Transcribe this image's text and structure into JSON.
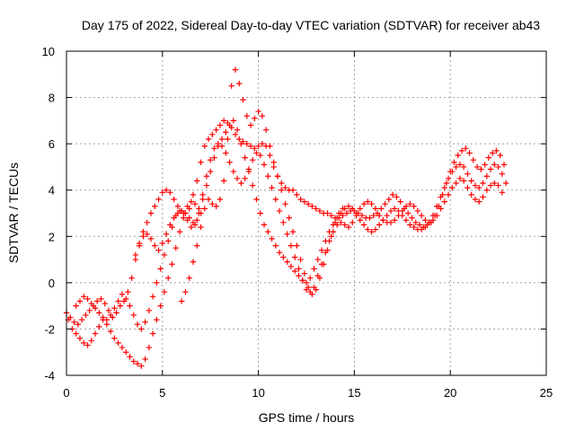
{
  "chart_data": {
    "type": "scatter",
    "title": "Day 175 of 2022, Sidereal Day-to-day VTEC variation (SDTVAR) for receiver ab43",
    "xlabel": "GPS time / hours",
    "ylabel": "SDTVAR / TECUs",
    "xlim": [
      0,
      25
    ],
    "ylim": [
      -4,
      10
    ],
    "xticks": [
      0,
      5,
      10,
      15,
      20,
      25
    ],
    "yticks": [
      -4,
      -2,
      0,
      2,
      4,
      6,
      8,
      10
    ],
    "grid": true,
    "marker": "plus",
    "color": "#ff0000",
    "series": [
      {
        "x": [
          0.0,
          0.2,
          0.4,
          0.6,
          0.8,
          1.0,
          1.2,
          1.4,
          1.6,
          1.8,
          2.0,
          2.2,
          2.4,
          2.6,
          2.8,
          3.0,
          3.2,
          3.4,
          3.6,
          3.8,
          4.0,
          4.2,
          4.4,
          4.6,
          4.8,
          5.0,
          5.2,
          5.4,
          5.6,
          5.8,
          6.0,
          6.2,
          6.4,
          6.6,
          6.8,
          7.0,
          7.2,
          7.4,
          7.6,
          7.8,
          8.0,
          8.2,
          8.4,
          8.6,
          8.8,
          9.0,
          9.2,
          9.4,
          9.6,
          9.8,
          10.0,
          10.2,
          10.4,
          10.6,
          10.8,
          11.0,
          11.2,
          11.4,
          11.6,
          11.8,
          12.0,
          12.2,
          12.4,
          12.6,
          12.8,
          13.0,
          13.2,
          13.4,
          13.6,
          13.8,
          14.0,
          14.2,
          14.4,
          14.6,
          14.8,
          15.0,
          15.2,
          15.4,
          15.6,
          15.8,
          16.0,
          16.2,
          16.4,
          16.6,
          16.8,
          17.0,
          17.2,
          17.4,
          17.6,
          17.8,
          18.0,
          18.2,
          18.4,
          18.6,
          18.8,
          19.0,
          19.2,
          19.4,
          19.6,
          19.8,
          20.0,
          20.2,
          20.4,
          20.6,
          20.8,
          21.0,
          21.2,
          21.4,
          21.6,
          21.8,
          22.0,
          22.2,
          22.4,
          22.6,
          22.8
        ],
        "y": [
          -1.3,
          -1.5,
          -1.7,
          -1.8,
          -1.6,
          -1.4,
          -1.2,
          -1.0,
          -0.8,
          -0.7,
          -0.9,
          -1.2,
          -1.5,
          -1.3,
          -1.0,
          -0.8,
          -0.4,
          0.2,
          1.0,
          1.7,
          2.2,
          2.6,
          3.0,
          3.3,
          3.6,
          3.9,
          4.0,
          3.9,
          3.6,
          3.3,
          3.1,
          3.0,
          3.2,
          3.8,
          4.4,
          5.2,
          5.9,
          6.2,
          6.4,
          6.6,
          6.8,
          7.0,
          6.9,
          6.7,
          6.4,
          6.2,
          6.1,
          6.0,
          5.9,
          5.8,
          5.9,
          6.0,
          5.9,
          5.5,
          5.0,
          4.6,
          4.3,
          4.1,
          4.0,
          4.0,
          3.8,
          3.6,
          3.5,
          3.4,
          3.3,
          3.2,
          3.1,
          3.0,
          3.0,
          2.9,
          2.8,
          2.8,
          2.9,
          3.0,
          3.1,
          3.1,
          3.0,
          2.9,
          2.8,
          2.8,
          2.9,
          3.0,
          3.2,
          3.4,
          3.6,
          3.8,
          3.7,
          3.5,
          3.2,
          3.0,
          2.8,
          2.6,
          2.5,
          2.4,
          2.5,
          2.6,
          2.9,
          3.3,
          3.8,
          4.3,
          4.8,
          5.2,
          5.5,
          5.7,
          5.8,
          5.6,
          5.3,
          5.0,
          4.9,
          5.1,
          5.4,
          5.6,
          5.7,
          5.5,
          5.1
        ]
      },
      {
        "x": [
          0.1,
          0.3,
          0.5,
          0.7,
          0.9,
          1.1,
          1.3,
          1.5,
          1.7,
          1.9,
          2.1,
          2.3,
          2.5,
          2.7,
          2.9,
          3.1,
          3.3,
          3.5,
          3.7,
          3.9,
          4.1,
          4.3,
          4.5,
          4.7,
          4.9,
          5.1,
          5.3,
          5.5,
          5.7,
          5.9,
          6.1,
          6.3,
          6.5,
          6.7,
          6.9,
          7.1,
          7.3,
          7.5,
          7.7,
          7.9,
          8.1,
          8.3,
          8.5,
          8.7,
          8.9,
          9.1,
          9.3,
          9.5,
          9.7,
          9.9,
          10.1,
          10.3,
          10.5,
          10.7,
          10.9,
          11.1,
          11.3,
          11.5,
          11.7,
          11.9,
          12.1,
          12.3,
          12.5,
          12.7,
          12.9,
          13.1,
          13.3,
          13.5,
          13.7,
          13.9,
          14.1,
          14.3,
          14.5,
          14.7,
          14.9,
          15.1,
          15.3,
          15.5,
          15.7,
          15.9,
          16.1,
          16.3,
          16.5,
          16.7,
          16.9,
          17.1,
          17.3,
          17.5,
          17.7,
          17.9,
          18.1,
          18.3,
          18.5,
          18.7,
          18.9,
          19.1,
          19.3,
          19.5,
          19.7,
          19.9,
          20.1,
          20.3,
          20.5,
          20.7,
          20.9,
          21.1,
          21.3,
          21.5,
          21.7,
          21.9,
          22.1,
          22.3,
          22.5,
          22.7,
          22.9
        ],
        "y": [
          -1.6,
          -2.0,
          -2.2,
          -2.4,
          -2.6,
          -2.7,
          -2.5,
          -2.2,
          -1.9,
          -1.6,
          -1.8,
          -2.1,
          -2.4,
          -2.6,
          -2.8,
          -3.0,
          -3.2,
          -3.4,
          -3.5,
          -3.6,
          -3.3,
          -2.8,
          -2.2,
          -1.6,
          -1.0,
          -0.4,
          0.2,
          0.8,
          1.5,
          2.2,
          2.8,
          3.3,
          3.5,
          3.4,
          3.2,
          3.6,
          4.2,
          4.8,
          5.4,
          5.9,
          6.2,
          6.5,
          6.8,
          7.0,
          6.6,
          6.0,
          5.4,
          4.8,
          4.2,
          3.6,
          3.0,
          2.5,
          2.2,
          1.9,
          1.6,
          1.3,
          1.1,
          0.9,
          0.7,
          0.5,
          0.3,
          0.1,
          0.0,
          0.2,
          0.6,
          1.0,
          1.4,
          1.8,
          2.2,
          2.5,
          2.8,
          3.0,
          3.2,
          3.3,
          3.2,
          3.0,
          2.7,
          2.5,
          2.3,
          2.2,
          2.3,
          2.5,
          2.7,
          2.9,
          3.1,
          3.2,
          3.1,
          2.9,
          2.7,
          2.5,
          2.4,
          2.3,
          2.3,
          2.4,
          2.6,
          2.9,
          3.3,
          3.7,
          4.1,
          4.5,
          4.8,
          5.0,
          5.1,
          5.0,
          4.7,
          4.4,
          4.2,
          4.1,
          4.3,
          4.6,
          4.9,
          5.1,
          5.0,
          4.7,
          4.3
        ]
      },
      {
        "x": [
          0.5,
          0.7,
          0.9,
          1.1,
          1.3,
          1.5,
          1.7,
          1.9,
          2.1,
          2.3,
          2.5,
          2.7,
          2.9,
          3.1,
          3.3,
          3.5,
          3.7,
          3.9,
          4.1,
          4.3,
          4.5,
          4.7,
          4.9,
          5.1,
          5.3,
          5.5,
          5.7,
          5.9,
          6.1,
          6.3,
          6.5,
          6.7,
          6.9,
          7.1,
          7.3,
          7.5,
          7.7,
          7.9,
          8.1,
          8.3,
          8.5,
          8.7,
          8.9,
          9.1,
          9.3,
          9.5,
          9.7,
          9.9,
          10.1,
          10.3,
          10.5,
          10.7,
          10.9,
          11.1,
          11.3,
          11.5,
          11.7,
          11.9,
          12.1,
          12.3,
          12.5,
          12.7,
          12.9,
          13.1,
          13.3,
          13.5,
          13.7,
          13.9,
          14.1,
          14.3,
          14.5,
          14.7,
          14.9,
          15.1,
          15.3,
          15.5,
          15.7,
          15.9,
          16.1,
          16.3,
          16.5,
          16.7,
          16.9,
          17.1,
          17.3,
          17.5,
          17.7,
          17.9,
          18.1,
          18.3,
          18.5,
          18.7,
          18.9,
          19.1,
          19.3,
          19.5,
          19.7,
          19.9,
          20.1,
          20.3,
          20.5,
          20.7,
          20.9,
          21.1,
          21.3,
          21.5,
          21.7,
          21.9,
          22.1,
          22.3,
          22.5,
          22.7
        ],
        "y": [
          -1.0,
          -0.8,
          -0.6,
          -0.7,
          -0.9,
          -1.1,
          -1.3,
          -1.5,
          -1.6,
          -1.4,
          -1.1,
          -0.8,
          -0.5,
          -0.7,
          -1.0,
          -1.4,
          -1.8,
          -2.0,
          -1.7,
          -1.2,
          -0.6,
          0.0,
          0.6,
          1.2,
          1.8,
          2.4,
          2.9,
          3.1,
          3.0,
          2.7,
          2.4,
          2.5,
          3.0,
          3.8,
          4.6,
          5.3,
          5.8,
          6.0,
          5.9,
          5.6,
          5.2,
          4.8,
          4.5,
          4.3,
          4.5,
          4.9,
          5.3,
          5.6,
          5.5,
          5.1,
          4.6,
          4.1,
          3.6,
          3.1,
          2.6,
          2.1,
          1.6,
          1.1,
          0.6,
          0.1,
          -0.3,
          -0.4,
          -0.2,
          0.3,
          0.8,
          1.3,
          1.8,
          2.2,
          2.5,
          2.6,
          2.5,
          2.4,
          2.6,
          2.9,
          3.2,
          3.4,
          3.5,
          3.4,
          3.2,
          2.9,
          2.7,
          2.6,
          2.6,
          2.7,
          2.9,
          3.1,
          3.3,
          3.4,
          3.3,
          3.1,
          2.9,
          2.7,
          2.6,
          2.7,
          2.9,
          3.2,
          3.5,
          3.8,
          4.1,
          4.3,
          4.5,
          4.4,
          4.1,
          3.8,
          3.6,
          3.5,
          3.7,
          4.0,
          4.2,
          4.3,
          4.2,
          3.9
        ]
      },
      {
        "x": [
          6.0,
          6.2,
          6.4,
          6.6,
          6.8,
          7.0,
          7.2,
          7.4,
          7.6,
          7.8,
          8.0,
          8.2,
          8.4,
          8.6,
          8.8,
          9.0,
          9.2,
          9.4,
          9.6,
          9.8,
          10.0,
          10.2,
          10.4,
          10.6,
          10.8,
          11.0,
          11.2,
          11.4,
          11.6,
          11.8,
          12.0,
          12.2,
          12.4,
          12.6,
          12.8,
          13.0,
          13.2,
          13.4,
          13.6,
          13.8,
          14.0,
          14.2,
          14.4
        ],
        "y": [
          -0.8,
          -0.4,
          0.2,
          0.9,
          1.6,
          2.4,
          3.2,
          3.6,
          3.4,
          3.3,
          3.6,
          4.4,
          6.2,
          8.5,
          9.2,
          8.6,
          7.9,
          7.2,
          6.8,
          7.1,
          7.4,
          7.2,
          6.6,
          5.9,
          5.2,
          4.6,
          4.0,
          3.4,
          2.8,
          2.2,
          1.6,
          1.0,
          0.4,
          -0.2,
          -0.5,
          -0.3,
          0.2,
          0.8,
          1.4,
          2.0,
          2.6,
          3.0,
          3.2
        ]
      },
      {
        "x": [
          3.6,
          3.8,
          4.0,
          4.2,
          4.4,
          4.6,
          4.8,
          5.0,
          5.2,
          5.4,
          5.6,
          5.8,
          6.0,
          6.2,
          6.4,
          6.6,
          6.8,
          7.0
        ],
        "y": [
          1.2,
          1.6,
          2.0,
          2.1,
          1.9,
          1.6,
          1.4,
          1.7,
          2.1,
          2.5,
          2.8,
          3.0,
          3.1,
          3.0,
          2.8,
          2.6,
          2.7,
          3.0
        ]
      }
    ]
  }
}
